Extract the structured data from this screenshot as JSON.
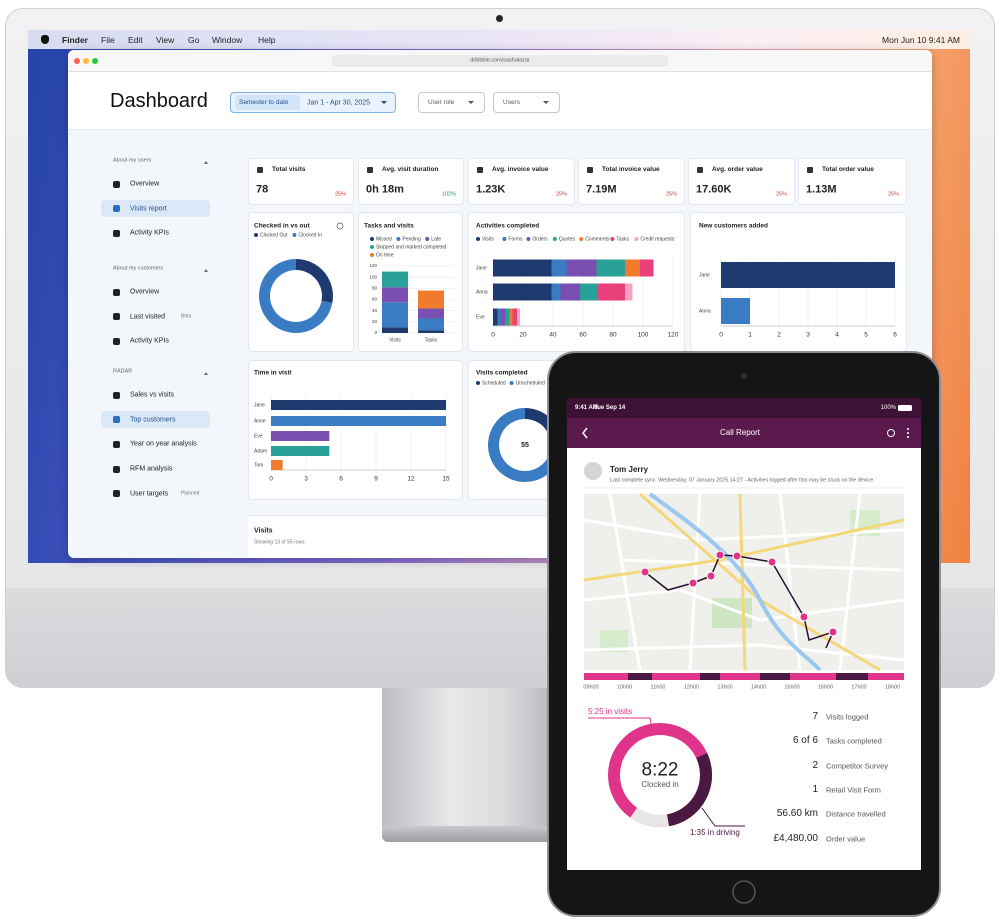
{
  "menubar": {
    "app": "Finder",
    "items": [
      "File",
      "Edit",
      "View",
      "Go",
      "Window",
      "Help"
    ],
    "clock": "Mon Jun 10  9:41 AM"
  },
  "browser": {
    "url": "dribbble.com/sashalazar"
  },
  "dashboard": {
    "title": "Dashboard",
    "date_filter": {
      "label": "Semester to date",
      "value": "Jan 1 - Apr 30, 2025"
    },
    "filters": [
      "User role",
      "Users"
    ],
    "sidebar": [
      {
        "title": "About my users",
        "items": [
          {
            "label": "Overview"
          },
          {
            "label": "Visits report",
            "active": true
          },
          {
            "label": "Activity KPIs"
          }
        ]
      },
      {
        "title": "About my customers",
        "items": [
          {
            "label": "Overview"
          },
          {
            "label": "Last visited",
            "badge": "Beta"
          },
          {
            "label": "Activity KPIs"
          }
        ]
      },
      {
        "title": "RADAR",
        "items": [
          {
            "label": "Sales vs visits"
          },
          {
            "label": "Top customers",
            "active": true
          },
          {
            "label": "Year on year analysis"
          },
          {
            "label": "RFM analysis"
          },
          {
            "label": "User targets",
            "badge": "Planned"
          }
        ]
      }
    ],
    "kpis": [
      {
        "label": "Total visits",
        "value": "78",
        "change": "25%",
        "trend": "down"
      },
      {
        "label": "Avg. visit duration",
        "value": "0h 18m",
        "change": "102%",
        "trend": "up"
      },
      {
        "label": "Avg. invoice value",
        "value": "1.23K",
        "change": "25%",
        "trend": "down"
      },
      {
        "label": "Total invoice value",
        "value": "7.19M",
        "change": "25%",
        "trend": "down"
      },
      {
        "label": "Avg. order value",
        "value": "17.60K",
        "change": "25%",
        "trend": "down"
      },
      {
        "label": "Total order value",
        "value": "1.13M",
        "change": "25%",
        "trend": "down"
      }
    ],
    "table": {
      "title": "Visits",
      "caption": "Showing 13 of 55 rows"
    }
  },
  "chart_data": [
    {
      "type": "pie",
      "title": "Checked in vs out",
      "categories": [
        "Clocked Out",
        "Clocked In"
      ],
      "values": [
        28,
        72
      ],
      "colors": [
        "#1f3a6e",
        "#3a7cc3"
      ],
      "donut": true
    },
    {
      "type": "bar",
      "orientation": "vertical",
      "stacked": true,
      "title": "Tasks and visits",
      "categories": [
        "Visits",
        "Tasks"
      ],
      "series": [
        {
          "name": "Missed",
          "color": "#1f3a6e",
          "values": [
            10,
            5
          ]
        },
        {
          "name": "Pending",
          "color": "#3a7cc3",
          "values": [
            45,
            21
          ]
        },
        {
          "name": "Late",
          "color": "#7b4fb0",
          "values": [
            27,
            18
          ]
        },
        {
          "name": "Skipped and marked completed",
          "color": "#2aa198",
          "values": [
            28,
            0
          ]
        },
        {
          "name": "On time",
          "color": "#f07b2c",
          "values": [
            0,
            32
          ]
        }
      ],
      "ylim": [
        0,
        120
      ],
      "yticks": [
        0,
        20,
        40,
        60,
        80,
        100,
        120
      ],
      "grid": true
    },
    {
      "type": "bar",
      "orientation": "horizontal",
      "stacked": true,
      "title": "Activities completed",
      "categories": [
        "Jane",
        "Anna",
        "Eve"
      ],
      "series": [
        {
          "name": "Visits",
          "color": "#1f3a6e",
          "values": [
            39,
            39,
            3
          ]
        },
        {
          "name": "Forms",
          "color": "#3a7cc3",
          "values": [
            10,
            6,
            2
          ]
        },
        {
          "name": "Orders",
          "color": "#7b4fb0",
          "values": [
            20,
            13,
            3
          ]
        },
        {
          "name": "Quotes",
          "color": "#2aa198",
          "values": [
            19,
            12,
            3
          ]
        },
        {
          "name": "Comments",
          "color": "#f07b2c",
          "values": [
            10,
            0,
            2
          ]
        },
        {
          "name": "Tasks",
          "color": "#e8407a",
          "values": [
            9,
            18,
            3
          ]
        },
        {
          "name": "Credit requests",
          "color": "#f4a3c4",
          "values": [
            0,
            5,
            2
          ]
        }
      ],
      "xlim": [
        0,
        120
      ],
      "xticks": [
        0,
        20,
        40,
        60,
        80,
        100,
        120
      ],
      "grid": true
    },
    {
      "type": "bar",
      "orientation": "horizontal",
      "title": "New customers added",
      "categories": [
        "Jane",
        "Anna"
      ],
      "values": [
        6,
        1
      ],
      "colors": [
        "#1f3a6e",
        "#3a7cc3"
      ],
      "xlim": [
        0,
        6
      ],
      "xticks": [
        0,
        1,
        2,
        3,
        4,
        5,
        6
      ],
      "grid": true
    },
    {
      "type": "bar",
      "orientation": "horizontal",
      "title": "Time in visit",
      "categories": [
        "Jane",
        "Anne",
        "Eve",
        "Adam",
        "Tom"
      ],
      "values": [
        15,
        15,
        5,
        5,
        1
      ],
      "colors": [
        "#1f3a6e",
        "#3a7cc3",
        "#7b4fb0",
        "#2aa198",
        "#f07b2c"
      ],
      "xlim": [
        0,
        15
      ],
      "xticks": [
        0,
        3,
        6,
        9,
        12,
        15
      ],
      "grid": true
    },
    {
      "type": "pie",
      "title": "Visits completed",
      "categories": [
        "Scheduled",
        "Unscheduled"
      ],
      "values": [
        15,
        40
      ],
      "colors": [
        "#1f3a6e",
        "#3a7cc3"
      ],
      "donut": true,
      "total": 55
    }
  ],
  "ipad": {
    "status": {
      "time": "9:41 AM",
      "date": "Tue Sep 14",
      "battery": "100%"
    },
    "title": "Call Report",
    "contact": {
      "name": "Tom Jerry",
      "sync": "Last complete sync: Wednesday, 07 January 2025 14:27 - Activities logged after this may be stuck on the device."
    },
    "timeline": [
      "09h00",
      "10h00",
      "11h00",
      "12h00",
      "13h00",
      "14h00",
      "15h00",
      "16h00",
      "17h00",
      "18h00"
    ],
    "clocked": {
      "time": "8:22",
      "label": "Clocked in"
    },
    "visits": "5:25 in visits",
    "driving": "1:35 in driving",
    "stats": [
      {
        "value": "7",
        "label": "Visits logged"
      },
      {
        "value": "6 of 6",
        "label": "Tasks completed"
      },
      {
        "value": "2",
        "label": "Competitor Survey"
      },
      {
        "value": "1",
        "label": "Retail Visit Form"
      },
      {
        "value": "56.60 km",
        "label": "Distance travelled"
      },
      {
        "value": "£4,480.00",
        "label": "Order value"
      }
    ]
  }
}
